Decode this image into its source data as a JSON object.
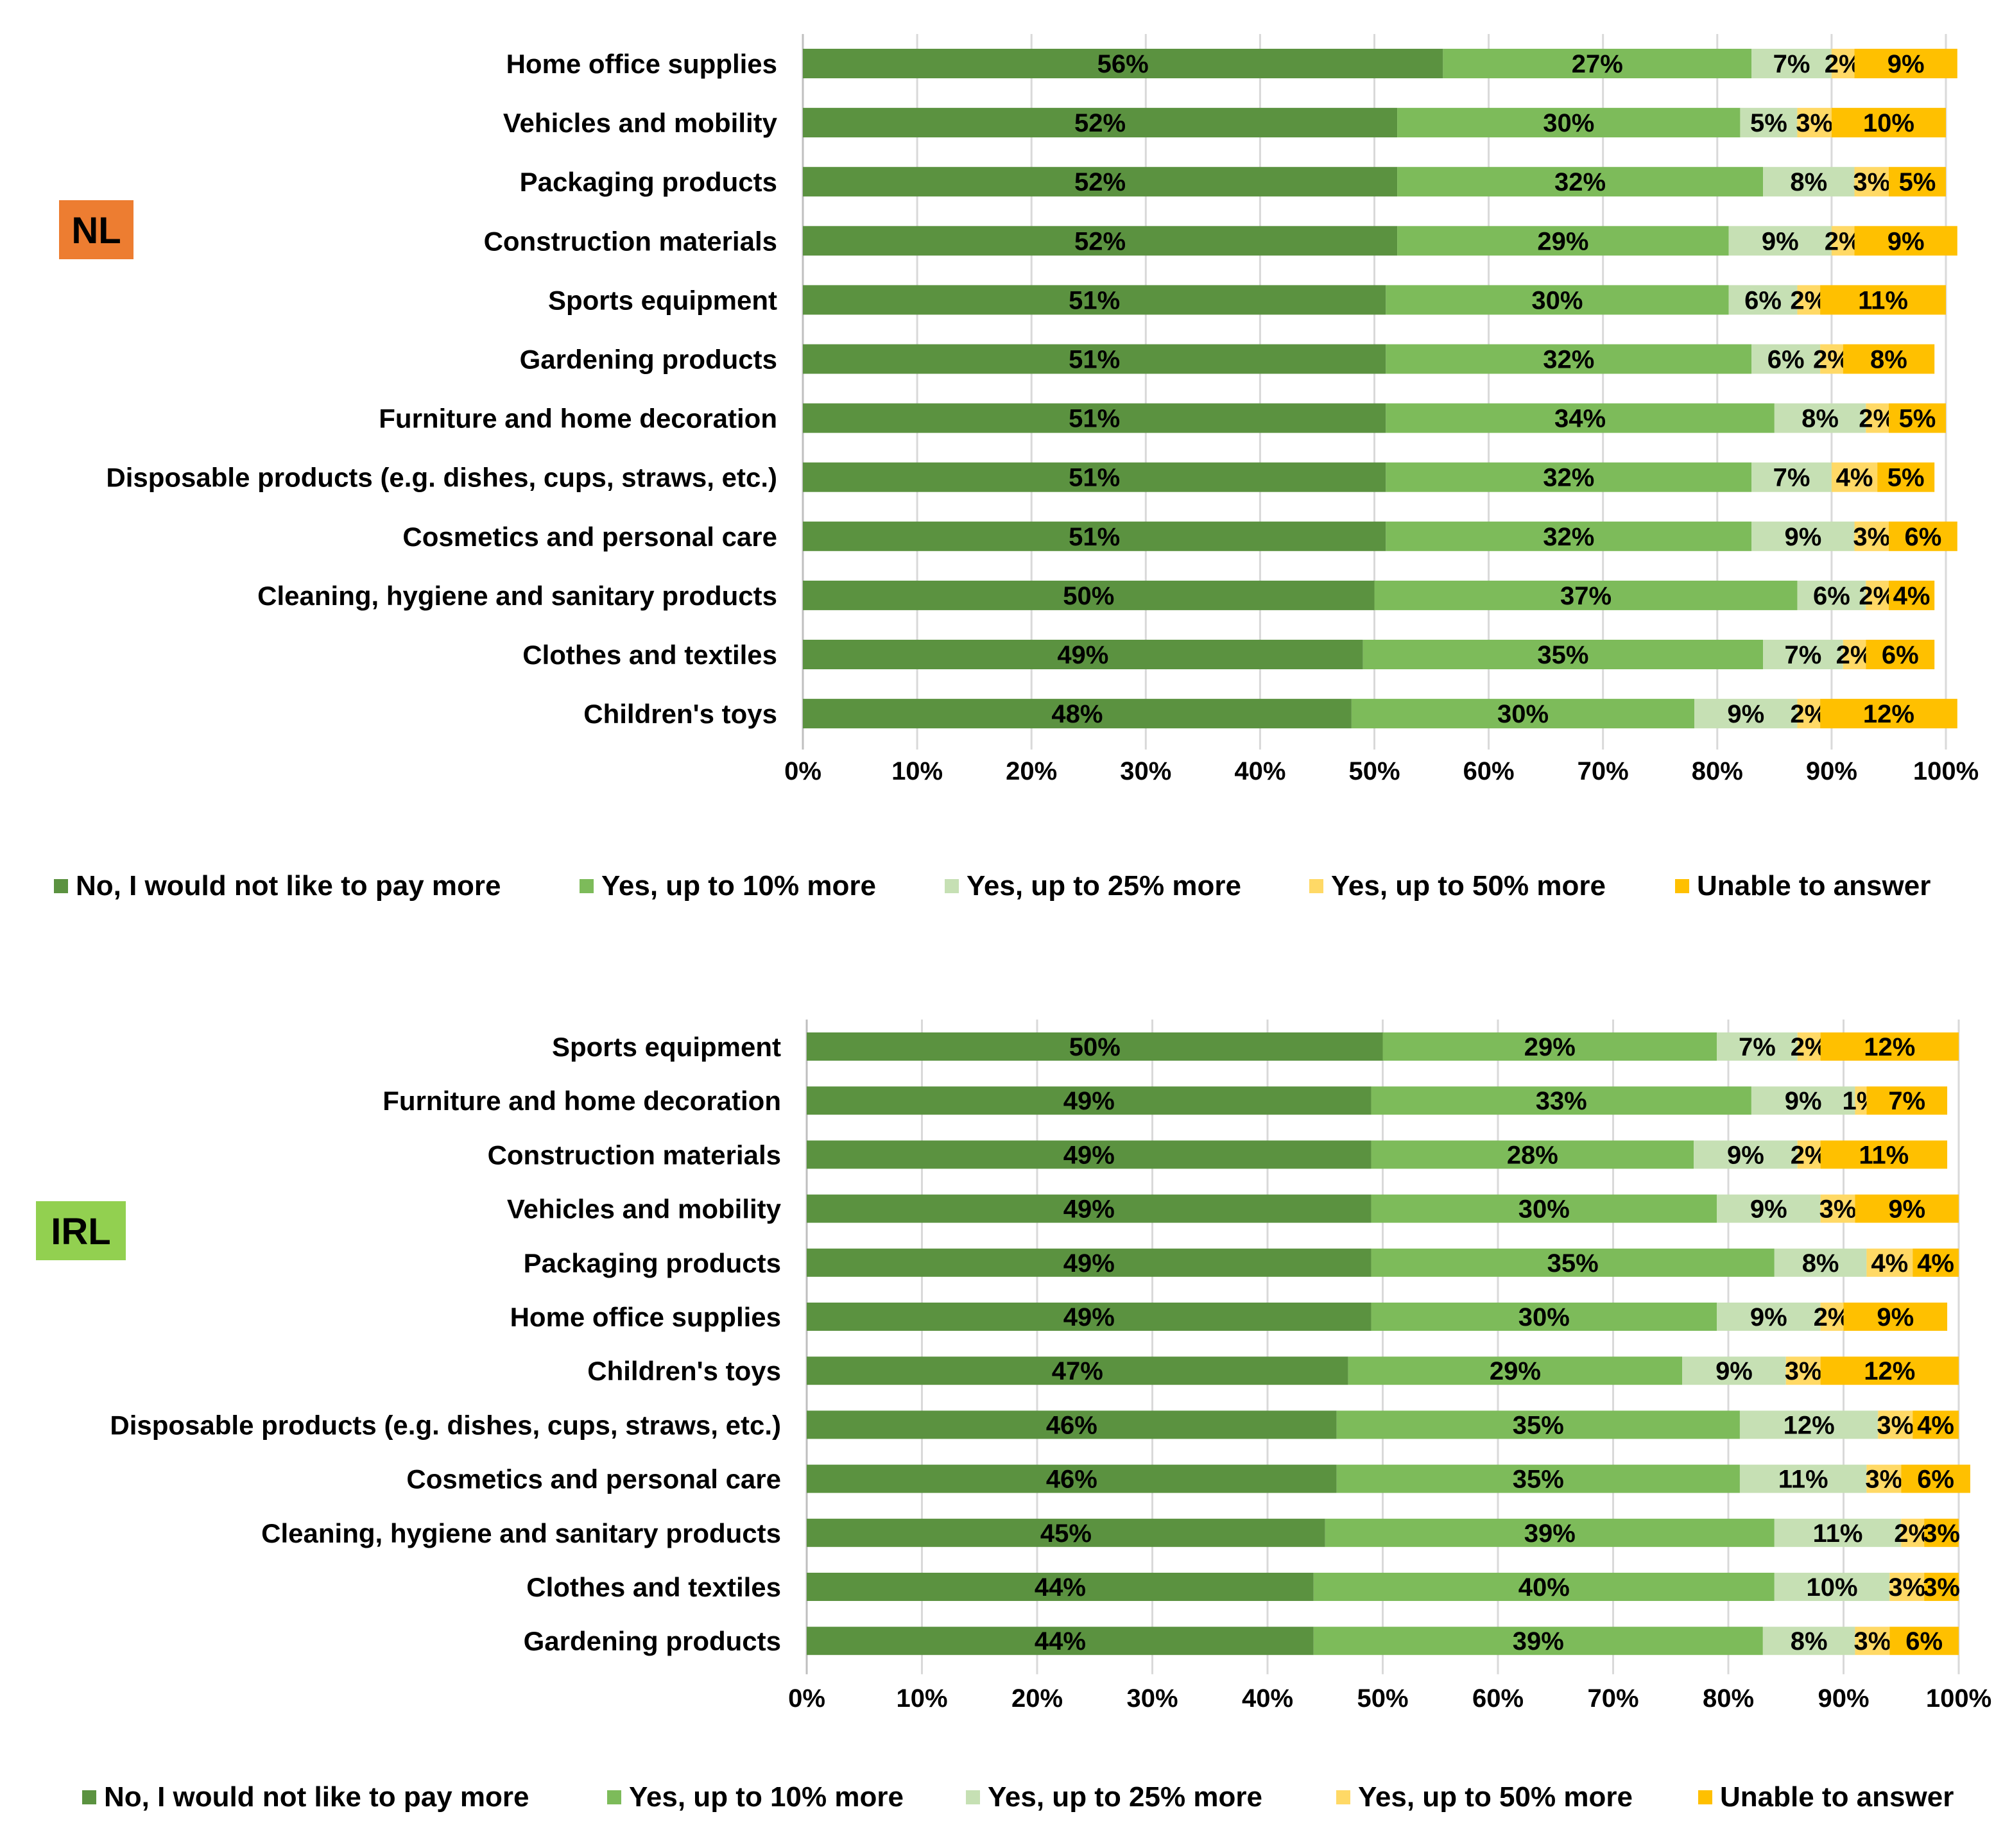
{
  "colors": {
    "No, I would not like to pay more": "#5b9240",
    "Yes, up to 10% more": "#7dbb5a",
    "Yes, up to 25% more": "#c6e0b4",
    "Yes, up to 50% more": "#ffd966",
    "Unable to answer": "#ffc000",
    "badge_NL": "#ed7d31",
    "badge_IRL": "#92d050",
    "gridline": "#d9d9d9",
    "axis": "#bfbfbf"
  },
  "chart_data": [
    {
      "type": "bar",
      "orientation": "horizontal-stacked-100",
      "badge": "NL",
      "categories": [
        "Home office supplies",
        "Vehicles and mobility",
        "Packaging products",
        "Construction materials",
        "Sports equipment",
        "Gardening products",
        "Furniture and home decoration",
        "Disposable products (e.g. dishes, cups, straws, etc.)",
        "Cosmetics and personal care",
        "Cleaning, hygiene and sanitary products",
        "Clothes and textiles",
        "Children's toys"
      ],
      "series": [
        {
          "name": "No, I would not like to pay more",
          "values": [
            56,
            52,
            52,
            52,
            51,
            51,
            51,
            51,
            51,
            50,
            49,
            48
          ]
        },
        {
          "name": "Yes, up to 10% more",
          "values": [
            27,
            30,
            32,
            29,
            30,
            32,
            34,
            32,
            32,
            37,
            35,
            30
          ]
        },
        {
          "name": "Yes, up to 25% more",
          "values": [
            7,
            5,
            8,
            9,
            6,
            6,
            8,
            7,
            9,
            6,
            7,
            9
          ]
        },
        {
          "name": "Yes, up to 50% more",
          "values": [
            2,
            3,
            3,
            2,
            2,
            2,
            2,
            4,
            3,
            2,
            2,
            2
          ]
        },
        {
          "name": "Unable to answer",
          "values": [
            9,
            10,
            5,
            9,
            11,
            8,
            5,
            5,
            6,
            4,
            6,
            12
          ]
        }
      ],
      "xticks": [
        "0%",
        "10%",
        "20%",
        "30%",
        "40%",
        "50%",
        "60%",
        "70%",
        "80%",
        "90%",
        "100%"
      ],
      "xlim": [
        0,
        100
      ],
      "grid": true,
      "legend": "bottom"
    },
    {
      "type": "bar",
      "orientation": "horizontal-stacked-100",
      "badge": "IRL",
      "categories": [
        "Sports equipment",
        "Furniture and home decoration",
        "Construction materials",
        "Vehicles and mobility",
        "Packaging products",
        "Home office supplies",
        "Children's toys",
        "Disposable products (e.g. dishes, cups, straws, etc.)",
        "Cosmetics and personal care",
        "Cleaning, hygiene and sanitary products",
        "Clothes and textiles",
        "Gardening products"
      ],
      "series": [
        {
          "name": "No, I would not like to pay more",
          "values": [
            50,
            49,
            49,
            49,
            49,
            49,
            47,
            46,
            46,
            45,
            44,
            44
          ]
        },
        {
          "name": "Yes, up to 10% more",
          "values": [
            29,
            33,
            28,
            30,
            35,
            30,
            29,
            35,
            35,
            39,
            40,
            39
          ]
        },
        {
          "name": "Yes, up to 25% more",
          "values": [
            7,
            9,
            9,
            9,
            8,
            9,
            9,
            12,
            11,
            11,
            10,
            8
          ]
        },
        {
          "name": "Yes, up to 50% more",
          "values": [
            2,
            1,
            2,
            3,
            4,
            2,
            3,
            3,
            3,
            2,
            3,
            3
          ]
        },
        {
          "name": "Unable to answer",
          "values": [
            12,
            7,
            11,
            9,
            4,
            9,
            12,
            4,
            6,
            3,
            3,
            6
          ]
        }
      ],
      "xticks": [
        "0%",
        "10%",
        "20%",
        "30%",
        "40%",
        "50%",
        "60%",
        "70%",
        "80%",
        "90%",
        "100%"
      ],
      "xlim": [
        0,
        100
      ],
      "grid": true,
      "legend": "bottom"
    }
  ]
}
